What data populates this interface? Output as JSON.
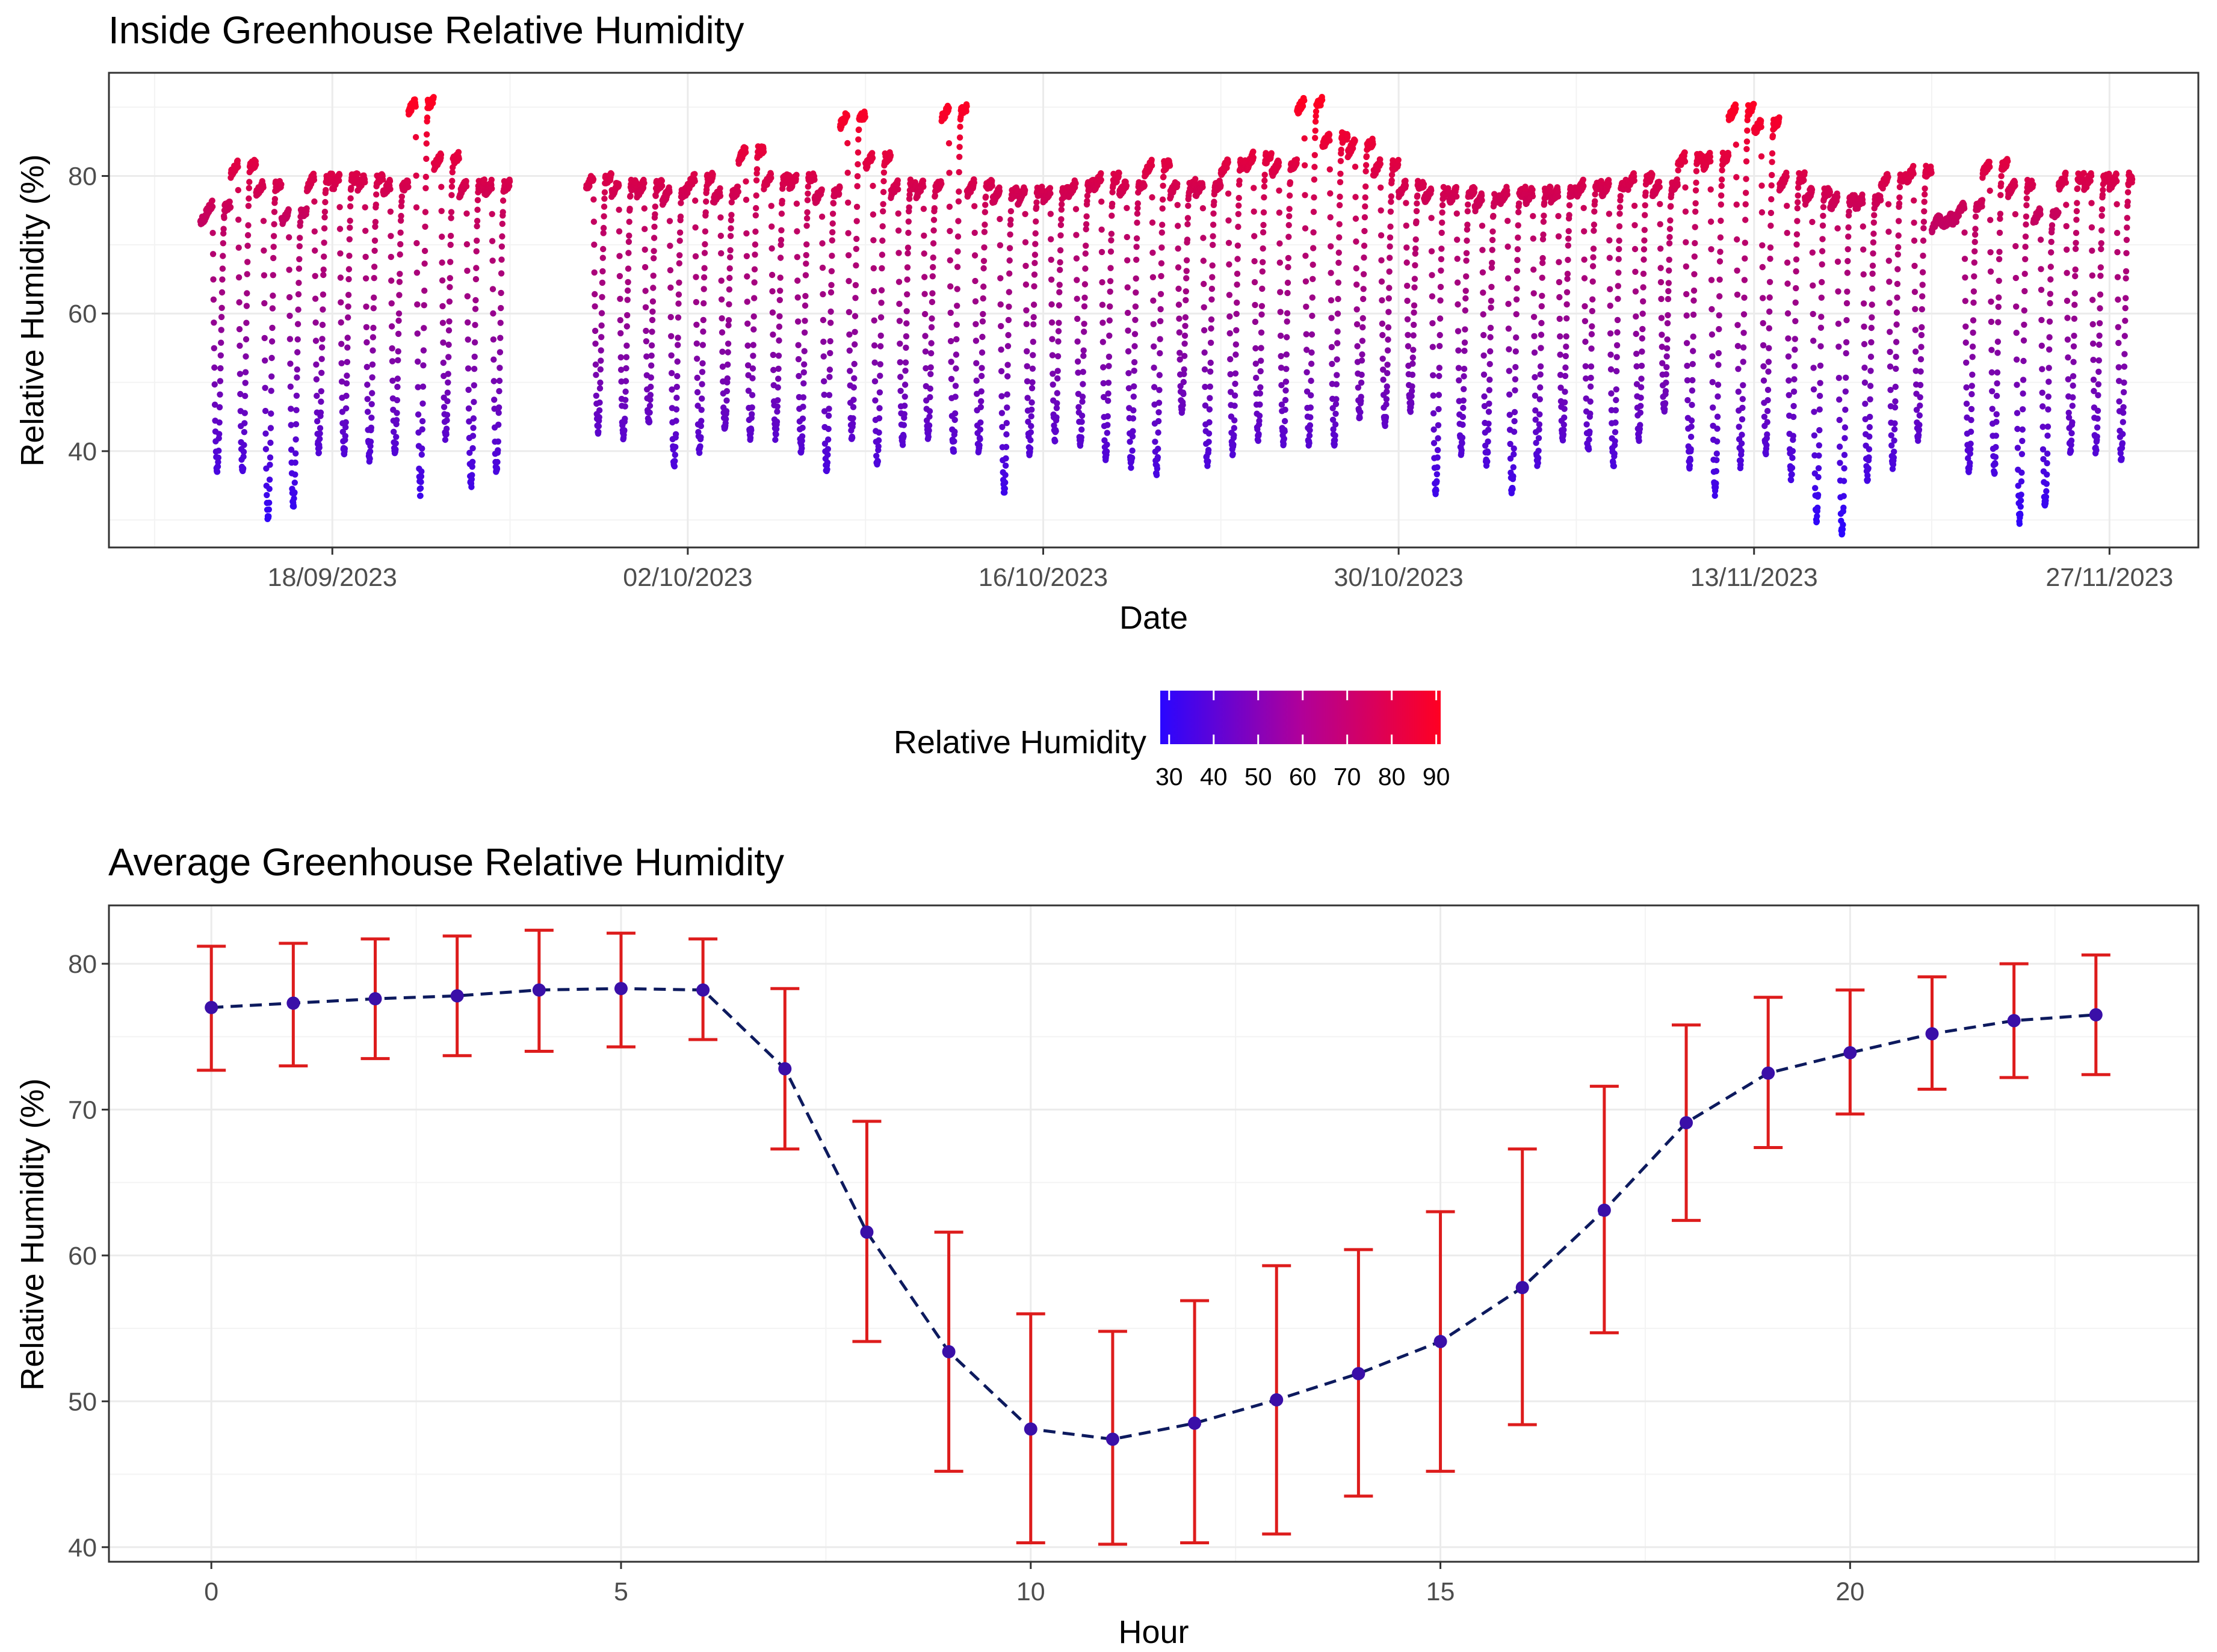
{
  "colors": {
    "low": "#2a06ff",
    "high": "#ff0022",
    "errorbar": "#dd1c1c",
    "line": "#0d1a5e",
    "point": "#3a0fa8"
  },
  "chart_data": [
    {
      "type": "scatter",
      "title": "Inside Greenhouse Relative Humidity",
      "xlabel": "Date",
      "ylabel": "Relative Humidity (%)",
      "x_ticks": [
        "18/09/2023",
        "02/10/2023",
        "16/10/2023",
        "30/10/2023",
        "13/11/2023",
        "27/11/2023"
      ],
      "x_tick_days": [
        18,
        32,
        46,
        60,
        74,
        88
      ],
      "y_ticks": [
        40,
        60,
        80
      ],
      "xlim": [
        9.2,
        91.5
      ],
      "ylim": [
        26,
        95
      ],
      "gap_days": [
        25.1,
        27.6
      ],
      "data_range_days": [
        12.8,
        88.9
      ],
      "daily_max": [
        74,
        76,
        82,
        79,
        75,
        80,
        80,
        80,
        79,
        91,
        83,
        79,
        79,
        80,
        79,
        79,
        78,
        80,
        78,
        84,
        80,
        80,
        78,
        89,
        83,
        79,
        79,
        90,
        79,
        78,
        78,
        78,
        79,
        80,
        79,
        82,
        79,
        79,
        82,
        83,
        82,
        91,
        86,
        85,
        82,
        79,
        78,
        78,
        77,
        78,
        78,
        78,
        79,
        79,
        80,
        79,
        83,
        83,
        90,
        88,
        80,
        78,
        77,
        77,
        80,
        81
      ],
      "daily_min": [
        73,
        37,
        37,
        30,
        32,
        40,
        40,
        39,
        40,
        34,
        42,
        35,
        37,
        43,
        42,
        44,
        38,
        40,
        43,
        42,
        42,
        40,
        37,
        42,
        38,
        41,
        42,
        40,
        40,
        34,
        40,
        42,
        41,
        39,
        38,
        37,
        46,
        38,
        40,
        42,
        41,
        41,
        41,
        45,
        44,
        46,
        34,
        40,
        38,
        34,
        38,
        42,
        40,
        38,
        42,
        46,
        38,
        34,
        38,
        40,
        36,
        30,
        28,
        36,
        38,
        42
      ],
      "colorbar": {
        "title": "Relative Humidity",
        "ticks": [
          "30",
          "40",
          "50",
          "60",
          "70",
          "80",
          "90"
        ],
        "range": [
          28,
          91
        ]
      }
    },
    {
      "type": "line",
      "title": "Average Greenhouse Relative Humidity",
      "xlabel": "Hour",
      "ylabel": "Relative Humidity (%)",
      "x": [
        0,
        1,
        2,
        3,
        4,
        5,
        6,
        7,
        8,
        9,
        10,
        11,
        12,
        13,
        14,
        15,
        16,
        17,
        18,
        19,
        20,
        21,
        22,
        23
      ],
      "mean": [
        77.0,
        77.3,
        77.6,
        77.8,
        78.2,
        78.3,
        78.2,
        72.8,
        61.6,
        53.4,
        48.1,
        47.4,
        48.5,
        50.1,
        51.9,
        54.1,
        57.8,
        63.1,
        69.1,
        72.5,
        73.9,
        75.2,
        76.1,
        76.5
      ],
      "lower": [
        72.7,
        73.0,
        73.5,
        73.7,
        74.0,
        74.3,
        74.8,
        67.3,
        54.1,
        45.2,
        40.3,
        40.2,
        40.3,
        40.9,
        43.5,
        45.2,
        48.4,
        54.7,
        62.4,
        67.4,
        69.7,
        71.4,
        72.2,
        72.4
      ],
      "upper": [
        81.2,
        81.4,
        81.7,
        81.9,
        82.3,
        82.1,
        81.7,
        78.3,
        69.2,
        61.6,
        56.0,
        54.8,
        56.9,
        59.3,
        60.4,
        63.0,
        67.3,
        71.6,
        75.8,
        77.7,
        78.2,
        79.1,
        80.0,
        80.6
      ],
      "x_ticks": [
        "0",
        "5",
        "10",
        "15",
        "20"
      ],
      "x_tick_values": [
        0,
        5,
        10,
        15,
        20
      ],
      "y_ticks": [
        "40",
        "50",
        "60",
        "70",
        "80"
      ],
      "y_tick_values": [
        40,
        50,
        60,
        70,
        80
      ],
      "xlim": [
        -1.25,
        24.25
      ],
      "ylim": [
        39,
        84
      ]
    }
  ]
}
